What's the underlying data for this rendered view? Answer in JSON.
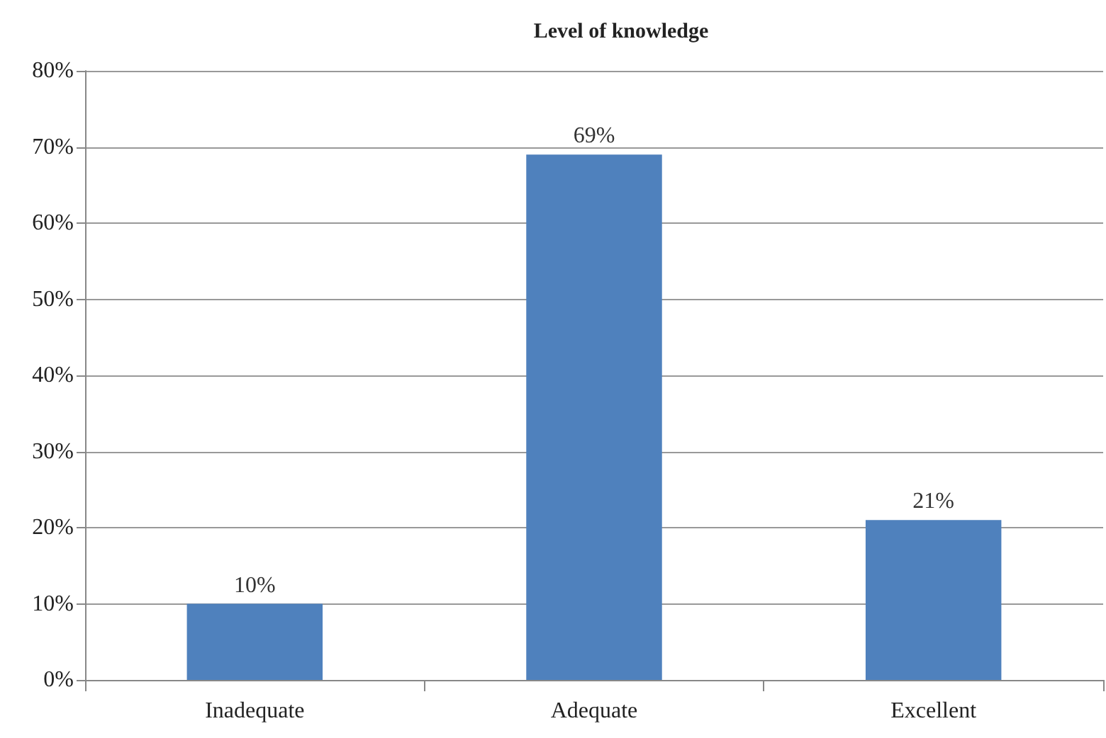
{
  "chart_data": {
    "type": "bar",
    "title": "Level of knowledge",
    "categories": [
      "Inadequate",
      "Adequate",
      "Excellent"
    ],
    "values": [
      10,
      69,
      21
    ],
    "color": "#4f81bd",
    "value_labels": [
      "10%",
      "69%",
      "21%"
    ],
    "ylim": [
      0,
      80
    ],
    "yticks": [
      {
        "value": 0,
        "label": "0%"
      },
      {
        "value": 10,
        "label": "10%"
      },
      {
        "value": 20,
        "label": "20%"
      },
      {
        "value": 30,
        "label": "30%"
      },
      {
        "value": 40,
        "label": "40%"
      },
      {
        "value": 50,
        "label": "50%"
      },
      {
        "value": 60,
        "label": "60%"
      },
      {
        "value": 70,
        "label": "70%"
      },
      {
        "value": 80,
        "label": "80%"
      }
    ],
    "grid": "y"
  }
}
